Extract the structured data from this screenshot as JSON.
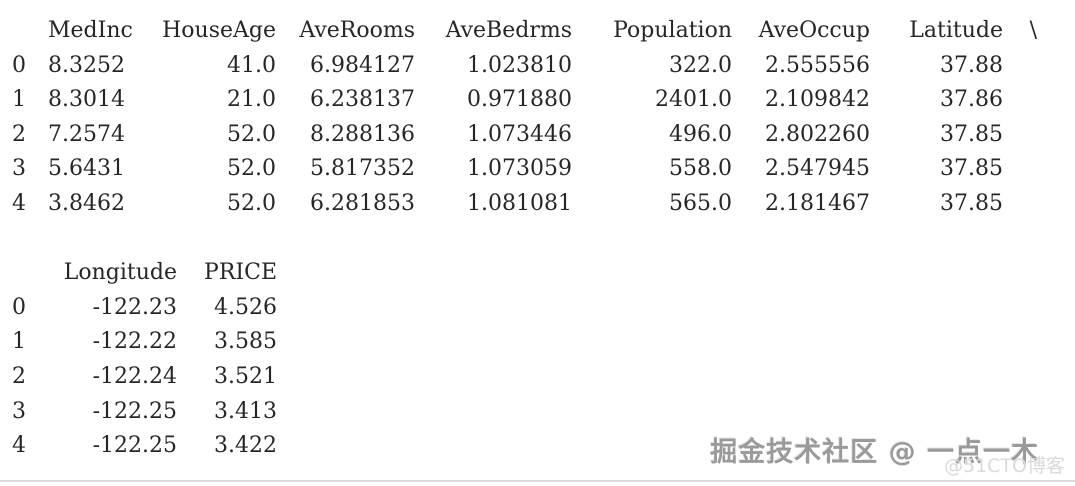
{
  "page": {
    "background": "#ffffff",
    "text_color": "#262626",
    "hairline_color": "#dcdcdc"
  },
  "dataframe": {
    "blocks": [
      {
        "columns": [
          "MedInc",
          "HouseAge",
          "AveRooms",
          "AveBedrms",
          "Population",
          "AveOccup",
          "Latitude"
        ],
        "continuation": "\\",
        "rows": [
          {
            "index": "0",
            "values": [
              "8.3252",
              "41.0",
              "6.984127",
              "1.023810",
              "322.0",
              "2.555556",
              "37.88"
            ]
          },
          {
            "index": "1",
            "values": [
              "8.3014",
              "21.0",
              "6.238137",
              "0.971880",
              "2401.0",
              "2.109842",
              "37.86"
            ]
          },
          {
            "index": "2",
            "values": [
              "7.2574",
              "52.0",
              "8.288136",
              "1.073446",
              "496.0",
              "2.802260",
              "37.85"
            ]
          },
          {
            "index": "3",
            "values": [
              "5.6431",
              "52.0",
              "5.817352",
              "1.073059",
              "558.0",
              "2.547945",
              "37.85"
            ]
          },
          {
            "index": "4",
            "values": [
              "3.8462",
              "52.0",
              "6.281853",
              "1.081081",
              "565.0",
              "2.181467",
              "37.85"
            ]
          }
        ]
      },
      {
        "columns": [
          "Longitude",
          "PRICE"
        ],
        "continuation": "",
        "rows": [
          {
            "index": "0",
            "values": [
              "-122.23",
              "4.526"
            ]
          },
          {
            "index": "1",
            "values": [
              "-122.22",
              "3.585"
            ]
          },
          {
            "index": "2",
            "values": [
              "-122.24",
              "3.521"
            ]
          },
          {
            "index": "3",
            "values": [
              "-122.25",
              "3.413"
            ]
          },
          {
            "index": "4",
            "values": [
              "-122.25",
              "3.422"
            ]
          }
        ]
      }
    ]
  },
  "watermarks": {
    "primary": "掘金技术社区 @ 一点一木",
    "secondary": "@51CTO博客"
  }
}
